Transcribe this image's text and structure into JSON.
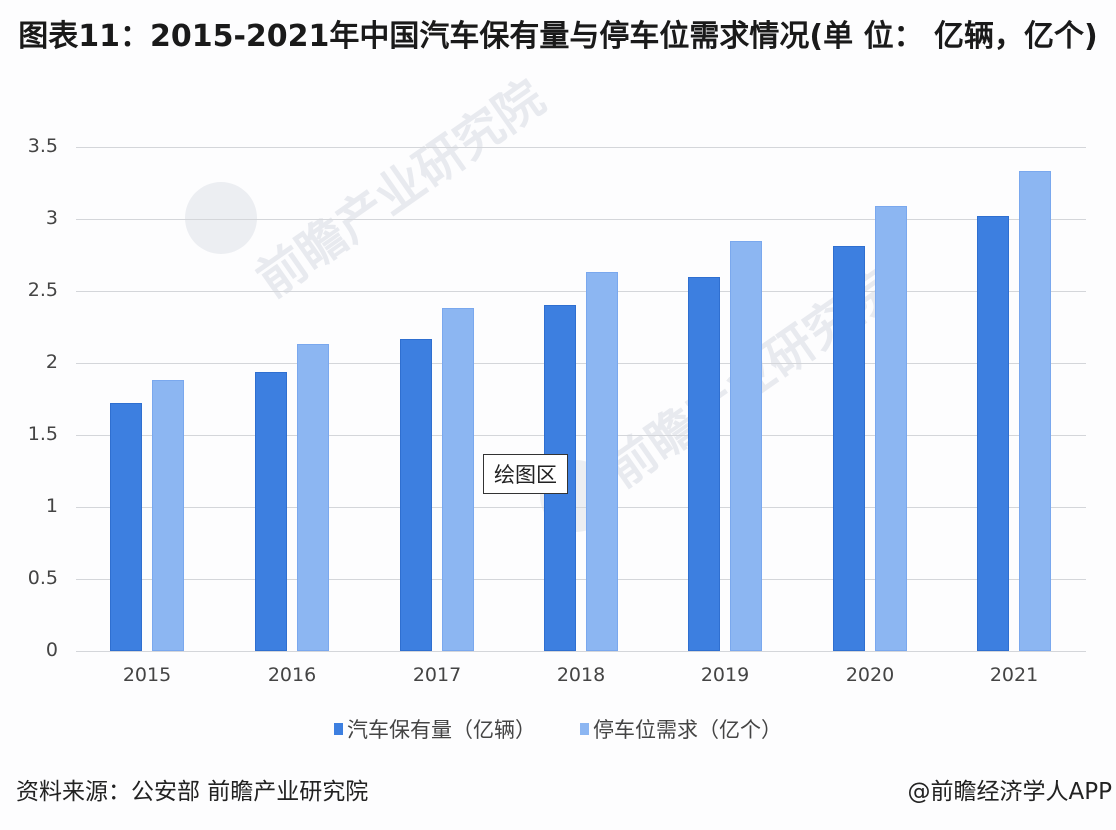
{
  "title": "图表11：2015-2021年中国汽车保有量与停车位需求情况(单 位： 亿辆，亿个)",
  "y_axis": {
    "ticks": [
      "3.5",
      "3",
      "2.5",
      "2",
      "1.5",
      "1",
      "0.5",
      "0"
    ]
  },
  "x_axis": {
    "ticks": [
      "2015",
      "2016",
      "2017",
      "2018",
      "2019",
      "2020",
      "2021"
    ]
  },
  "legend": [
    {
      "label": "汽车保有量（亿辆）",
      "color": "#3d7fe0"
    },
    {
      "label": "停车位需求（亿个）",
      "color": "#8cb6f2"
    }
  ],
  "tooltip": "绘图区",
  "footer": {
    "source": "资料来源：公安部 前瞻产业研究院",
    "credit": "@前瞻经济学人APP"
  },
  "watermark": {
    "text": "前瞻产业研究院"
  },
  "chart_data": {
    "type": "bar",
    "title": "图表11：2015-2021年中国汽车保有量与停车位需求情况(单位：亿辆，亿个)",
    "categories": [
      "2015",
      "2016",
      "2017",
      "2018",
      "2019",
      "2020",
      "2021"
    ],
    "series": [
      {
        "name": "汽车保有量（亿辆）",
        "color": "#3d7fe0",
        "values": [
          1.72,
          1.94,
          2.17,
          2.4,
          2.6,
          2.81,
          3.02
        ]
      },
      {
        "name": "停车位需求（亿个）",
        "color": "#8cb6f2",
        "values": [
          1.88,
          2.13,
          2.38,
          2.63,
          2.85,
          3.09,
          3.33
        ]
      }
    ],
    "xlabel": "",
    "ylabel": "",
    "ylim": [
      0,
      3.5
    ],
    "yticks": [
      0,
      0.5,
      1,
      1.5,
      2,
      2.5,
      3,
      3.5
    ],
    "grid": true,
    "legend_position": "bottom"
  }
}
